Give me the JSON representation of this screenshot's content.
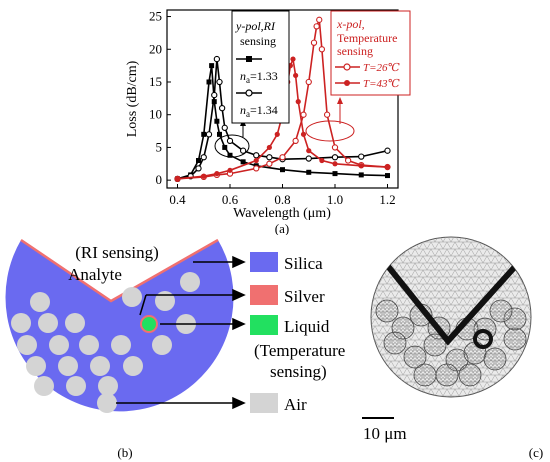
{
  "panel_a": {
    "label": "(a)",
    "xlabel": "Wavelength (μm)",
    "ylabel": "Loss (dB/cm)",
    "y_ticks": [
      "0",
      "5",
      "10",
      "15",
      "20",
      "25"
    ],
    "x_ticks": [
      "0.4",
      "0.6",
      "0.8",
      "1.0",
      "1.2"
    ],
    "legend_y": {
      "title_line1": "y-pol,RI",
      "title_line2": "sensing",
      "entry1": "n",
      "entry1_sub": "a",
      "entry1_val": "=1.33",
      "entry2": "n",
      "entry2_sub": "a",
      "entry2_val": "=1.34"
    },
    "legend_x": {
      "title_line1": "x-pol,",
      "title_line2": "Temperature",
      "title_line3": "sensing",
      "entry1": "T=26℃",
      "entry2": "T=43℃"
    }
  },
  "panel_b": {
    "label": "(b)",
    "analyte_line1": "(RI sensing)",
    "analyte_line2": "Analyte",
    "materials": [
      {
        "name": "Silica",
        "color": "#6a6af0"
      },
      {
        "name": "Silver",
        "color": "#f07070"
      },
      {
        "name": "Liquid",
        "color": "#22e060"
      },
      {
        "name": "Air",
        "color": "#d4d4d4"
      }
    ],
    "liquid_note_line1": "(Temperature",
    "liquid_note_line2": "sensing)"
  },
  "panel_c": {
    "label": "(c)",
    "scale": "10 μm"
  },
  "chart_data": {
    "type": "line",
    "title": "",
    "xlabel": "Wavelength (μm)",
    "ylabel": "Loss (dB/cm)",
    "xlim": [
      0.36,
      1.24
    ],
    "ylim": [
      -1.2,
      26
    ],
    "series": [
      {
        "name": "na=1.33",
        "color": "#000000",
        "marker": "filled-square",
        "x": [
          0.4,
          0.45,
          0.48,
          0.5,
          0.52,
          0.53,
          0.54,
          0.55,
          0.56,
          0.58,
          0.6,
          0.65,
          0.7,
          0.8,
          0.9,
          1.0,
          1.1,
          1.2
        ],
        "y": [
          0.2,
          0.8,
          3.0,
          7.0,
          15.0,
          17.5,
          12.0,
          9.0,
          7.0,
          5.0,
          3.8,
          2.8,
          2.2,
          1.6,
          1.2,
          1.0,
          0.8,
          0.7
        ]
      },
      {
        "name": "na=1.34",
        "color": "#000000",
        "marker": "open-circle",
        "x": [
          0.4,
          0.45,
          0.48,
          0.5,
          0.52,
          0.54,
          0.55,
          0.56,
          0.57,
          0.58,
          0.6,
          0.65,
          0.7,
          0.75,
          0.8,
          0.9,
          1.0,
          1.1,
          1.2
        ],
        "y": [
          0.2,
          0.6,
          1.8,
          3.5,
          7.0,
          13.0,
          18.5,
          15.0,
          11.0,
          8.0,
          6.0,
          4.5,
          3.8,
          3.5,
          3.2,
          3.3,
          3.5,
          3.6,
          4.5
        ]
      },
      {
        "name": "T=26℃",
        "color": "#cc2222",
        "marker": "open-circle",
        "x": [
          0.4,
          0.5,
          0.55,
          0.6,
          0.7,
          0.75,
          0.8,
          0.85,
          0.88,
          0.9,
          0.92,
          0.93,
          0.94,
          0.95,
          0.97,
          1.0,
          1.05,
          1.1,
          1.2
        ],
        "y": [
          0.2,
          0.5,
          0.8,
          1.0,
          1.8,
          2.5,
          3.5,
          6.0,
          10.0,
          15.0,
          21.0,
          23.5,
          24.5,
          20.0,
          10.0,
          5.0,
          3.0,
          2.3,
          2.0
        ]
      },
      {
        "name": "T=43℃",
        "color": "#cc2222",
        "marker": "filled-circle",
        "x": [
          0.4,
          0.5,
          0.55,
          0.6,
          0.7,
          0.75,
          0.78,
          0.8,
          0.82,
          0.83,
          0.84,
          0.85,
          0.86,
          0.88,
          0.9,
          0.95,
          1.0,
          1.1,
          1.2
        ],
        "y": [
          0.2,
          0.6,
          1.0,
          1.5,
          3.0,
          5.0,
          7.0,
          10.0,
          15.0,
          17.5,
          18.5,
          16.0,
          12.0,
          7.0,
          4.5,
          3.0,
          2.5,
          2.2,
          2.0
        ]
      }
    ]
  }
}
